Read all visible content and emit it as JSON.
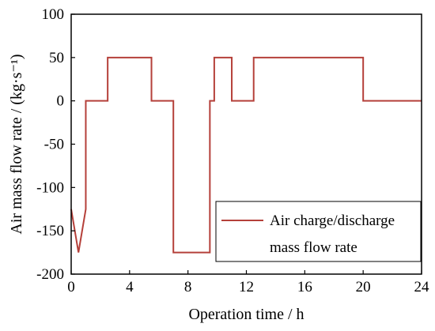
{
  "chart_data": {
    "type": "line",
    "title": "",
    "xlabel": "Operation time / h",
    "ylabel": "Air mass flow rate / (kg·s⁻¹)",
    "xlim": [
      0,
      24
    ],
    "ylim": [
      -200,
      100
    ],
    "xticks": [
      0,
      4,
      8,
      12,
      16,
      20,
      24
    ],
    "yticks": [
      100,
      50,
      0,
      -50,
      -100,
      -150,
      -200
    ],
    "legend_position": "bottom-right",
    "grid": false,
    "series": [
      {
        "name": "Air charge/discharge mass flow rate",
        "legend_lines": [
          "Air charge/discharge",
          "mass flow rate"
        ],
        "color": "#b5403a",
        "x": [
          0,
          0.5,
          1,
          1,
          2.5,
          2.5,
          5.5,
          5.5,
          7,
          7,
          9.5,
          9.5,
          9.8,
          9.8,
          11,
          11,
          12.5,
          12.5,
          20,
          20,
          24
        ],
        "y": [
          -125,
          -175,
          -125,
          0,
          0,
          50,
          50,
          0,
          0,
          -175,
          -175,
          0,
          0,
          50,
          50,
          0,
          0,
          50,
          50,
          0,
          0
        ]
      }
    ]
  }
}
